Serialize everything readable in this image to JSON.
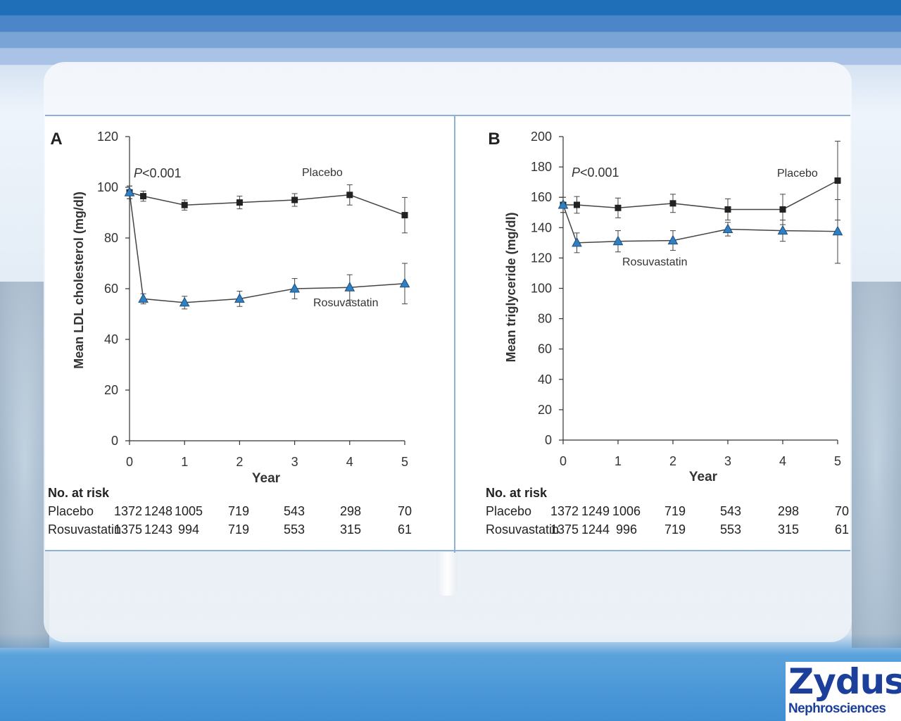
{
  "logo": {
    "brand": "Zydus",
    "sub": "Nephrosciences"
  },
  "chart_data": [
    {
      "panel_label": "A",
      "type": "line",
      "xlabel": "Year",
      "ylabel": "Mean LDL cholesterol (mg/dl)",
      "ylim": [
        0,
        120
      ],
      "yticks": [
        0,
        20,
        40,
        60,
        80,
        100,
        120
      ],
      "xlim": [
        0,
        5
      ],
      "xticks": [
        0,
        1,
        2,
        3,
        4,
        5
      ],
      "annotation": "P<0.001",
      "series": [
        {
          "name": "Placebo",
          "marker": "square",
          "color": "#222222",
          "x": [
            0,
            0.25,
            1,
            2,
            3,
            4,
            5
          ],
          "y": [
            98,
            96.5,
            93,
            94,
            95,
            97,
            89
          ],
          "err": [
            2.5,
            2,
            2,
            2.5,
            2.5,
            4,
            7
          ]
        },
        {
          "name": "Rosuvastatin",
          "marker": "triangle",
          "color": "#2f7fc1",
          "x": [
            0,
            0.25,
            1,
            2,
            3,
            4,
            5
          ],
          "y": [
            98,
            56,
            54.5,
            56,
            60,
            60.5,
            62
          ],
          "err": [
            2.5,
            2,
            2.5,
            3,
            4,
            5,
            8
          ]
        }
      ],
      "at_risk": {
        "header": "No. at risk",
        "rows": [
          {
            "label": "Placebo",
            "values": [
              "1372",
              "1248",
              "1005",
              "719",
              "543",
              "298",
              "70"
            ]
          },
          {
            "label": "Rosuvastatin",
            "values": [
              "1375",
              "1243",
              "994",
              "719",
              "553",
              "315",
              "61"
            ]
          }
        ]
      }
    },
    {
      "panel_label": "B",
      "type": "line",
      "xlabel": "Year",
      "ylabel": "Mean triglyceride (mg/dl)",
      "ylim": [
        0,
        200
      ],
      "yticks": [
        0,
        20,
        40,
        60,
        80,
        100,
        120,
        140,
        160,
        180,
        200
      ],
      "xlim": [
        0,
        5
      ],
      "xticks": [
        0,
        1,
        2,
        3,
        4,
        5
      ],
      "annotation": "P<0.001",
      "series": [
        {
          "name": "Placebo",
          "marker": "square",
          "color": "#222222",
          "x": [
            0,
            0.25,
            1,
            2,
            3,
            4,
            5
          ],
          "y": [
            155,
            155,
            153,
            156,
            152,
            152,
            171
          ],
          "err": [
            5,
            5.5,
            6.5,
            6,
            7,
            10,
            26
          ]
        },
        {
          "name": "Rosuvastatin",
          "marker": "triangle",
          "color": "#2f7fc1",
          "x": [
            0,
            0.25,
            1,
            2,
            3,
            4,
            5
          ],
          "y": [
            155,
            130,
            131,
            131.5,
            139,
            138,
            137.5
          ],
          "err": [
            5,
            6.5,
            7,
            6.5,
            4.5,
            7,
            21
          ]
        }
      ],
      "at_risk": {
        "header": "No. at risk",
        "rows": [
          {
            "label": "Placebo",
            "values": [
              "1372",
              "1249",
              "1006",
              "719",
              "543",
              "298",
              "70"
            ]
          },
          {
            "label": "Rosuvastatin",
            "values": [
              "1375",
              "1244",
              "996",
              "719",
              "553",
              "315",
              "61"
            ]
          }
        ]
      }
    }
  ]
}
